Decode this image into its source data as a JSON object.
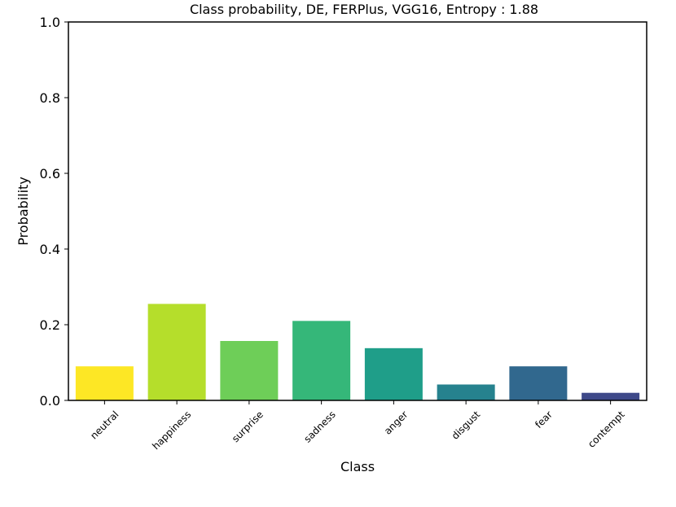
{
  "chart_data": {
    "type": "bar",
    "title": "Class probability, DE, FERPlus, VGG16, Entropy : 1.88",
    "xlabel": "Class",
    "ylabel": "Probability",
    "ylim": [
      0,
      1.0
    ],
    "yticks": [
      0.0,
      0.2,
      0.4,
      0.6,
      0.8,
      1.0
    ],
    "ytick_labels": [
      "0.0",
      "0.2",
      "0.4",
      "0.6",
      "0.8",
      "1.0"
    ],
    "categories": [
      "neutral",
      "happiness",
      "surprise",
      "sadness",
      "anger",
      "disgust",
      "fear",
      "contempt"
    ],
    "values": [
      0.09,
      0.255,
      0.157,
      0.21,
      0.138,
      0.042,
      0.09,
      0.02
    ],
    "colors": [
      "#fde725",
      "#b5de2b",
      "#6ece58",
      "#35b779",
      "#1f9e89",
      "#26828e",
      "#31688e",
      "#3e4989"
    ],
    "grid": false
  }
}
